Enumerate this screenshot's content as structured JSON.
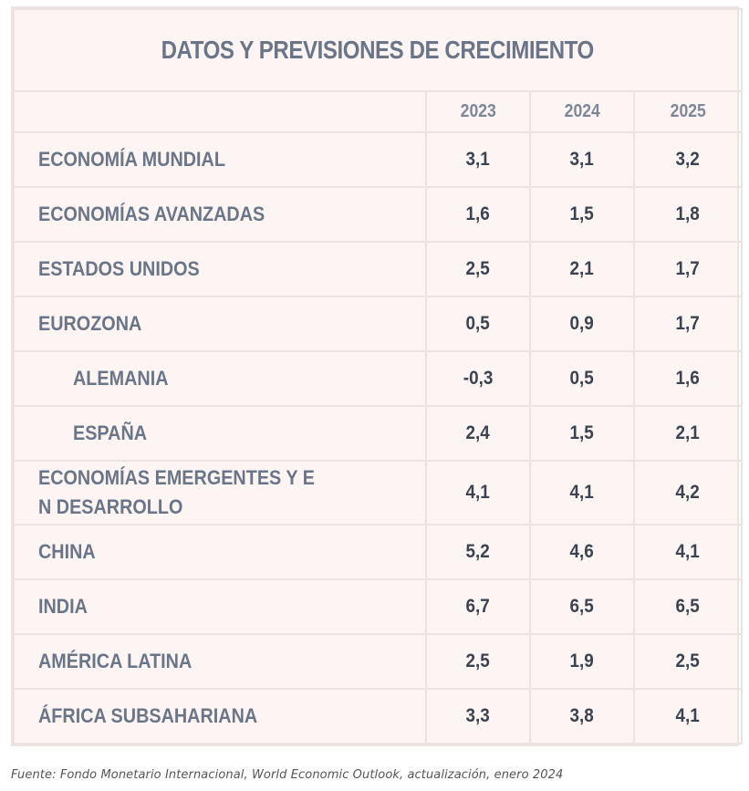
{
  "chart_data": {
    "type": "table",
    "title": "DATOS Y PREVISIONES DE CRECIMIENTO",
    "columns": [
      "2023",
      "2024",
      "2025"
    ],
    "rows": [
      {
        "label": "ECONOMÍA MUNDIAL",
        "indent": false,
        "values": [
          "3,1",
          "3,1",
          "3,2"
        ]
      },
      {
        "label": "ECONOMÍAS AVANZADAS",
        "indent": false,
        "values": [
          "1,6",
          "1,5",
          "1,8"
        ]
      },
      {
        "label": "ESTADOS UNIDOS",
        "indent": false,
        "values": [
          "2,5",
          "2,1",
          "1,7"
        ]
      },
      {
        "label": "EUROZONA",
        "indent": false,
        "values": [
          "0,5",
          "0,9",
          "1,7"
        ]
      },
      {
        "label": "ALEMANIA",
        "indent": true,
        "values": [
          "-0,3",
          "0,5",
          "1,6"
        ]
      },
      {
        "label": "ESPAÑA",
        "indent": true,
        "values": [
          "2,4",
          "1,5",
          "2,1"
        ]
      },
      {
        "label": "ECONOMÍAS EMERGENTES Y E\nN DESARROLLO",
        "indent": false,
        "values": [
          "4,1",
          "4,1",
          "4,2"
        ]
      },
      {
        "label": "CHINA",
        "indent": false,
        "values": [
          "5,2",
          "4,6",
          "4,1"
        ]
      },
      {
        "label": "INDIA",
        "indent": false,
        "values": [
          "6,7",
          "6,5",
          "6,5"
        ]
      },
      {
        "label": "AMÉRICA LATINA",
        "indent": false,
        "values": [
          "2,5",
          "1,9",
          "2,5"
        ]
      },
      {
        "label": "ÁFRICA SUBSAHARIANA",
        "indent": false,
        "values": [
          "3,3",
          "3,8",
          "4,1"
        ]
      }
    ],
    "source": "Fuente: Fondo Monetario Internacional, World Economic Outlook, actualización, enero 2024"
  },
  "colors": {
    "background": "#fdf5f3",
    "grid": "#ebe2e2",
    "label_text": "#6a7587",
    "value_text": "#3c4350"
  }
}
